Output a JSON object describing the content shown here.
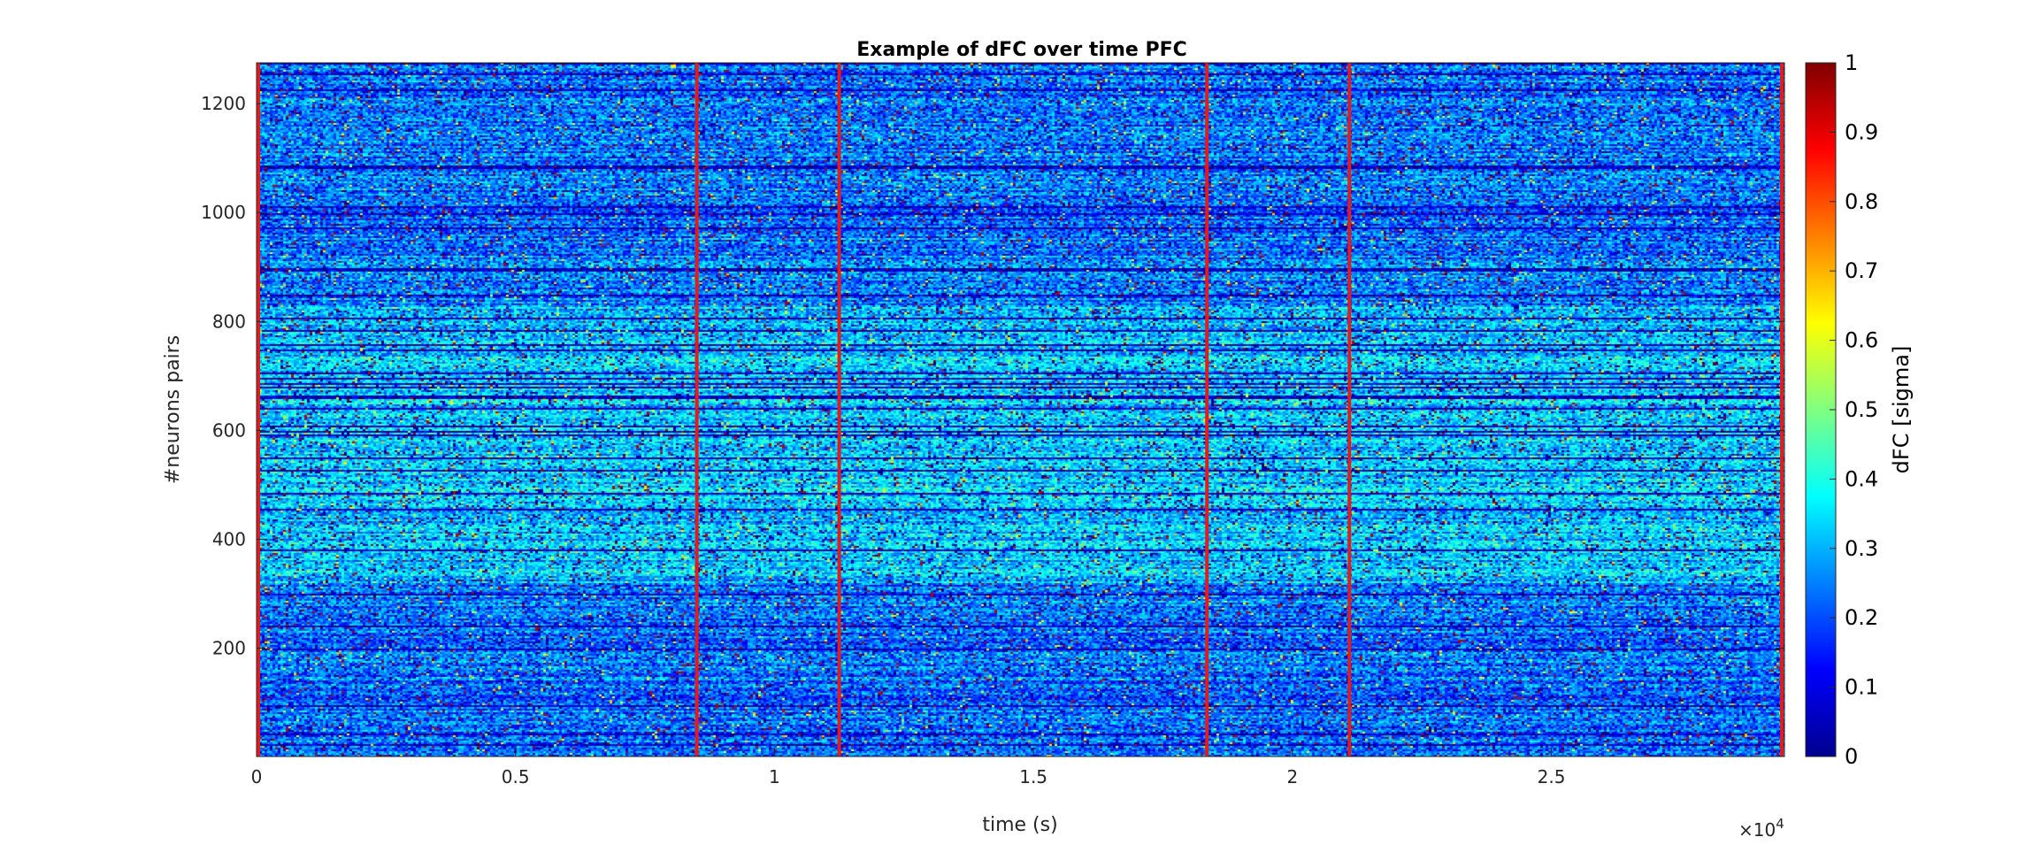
{
  "chart_data": {
    "type": "heatmap",
    "title": "Example of dFC over time PFC",
    "xlabel": "time (s)",
    "ylabel": "#neurons pairs",
    "x_exponent_label": "×10",
    "x_exponent_power": "4",
    "xlim": [
      0,
      29500
    ],
    "ylim": [
      1,
      1275
    ],
    "x_ticks": [
      0,
      5000,
      10000,
      15000,
      20000,
      25000
    ],
    "x_tick_labels": [
      "0",
      "0.5",
      "1",
      "1.5",
      "2",
      "2.5"
    ],
    "y_ticks": [
      200,
      400,
      600,
      800,
      1000,
      1200
    ],
    "y_tick_labels": [
      "200",
      "400",
      "600",
      "800",
      "1000",
      "1200"
    ],
    "vertical_markers": [
      0,
      8500,
      11250,
      18350,
      21100,
      29450
    ],
    "marker_color": "#e41a1c",
    "colorbar": {
      "label": "dFC [sigma]",
      "limits": [
        0,
        1
      ],
      "ticks": [
        0,
        0.1,
        0.2,
        0.3,
        0.4,
        0.5,
        0.6,
        0.7,
        0.8,
        0.9,
        1
      ],
      "tick_labels": [
        "0",
        "0.1",
        "0.2",
        "0.3",
        "0.4",
        "0.5",
        "0.6",
        "0.7",
        "0.8",
        "0.9",
        "1"
      ],
      "colormap": "jet"
    },
    "grid": false
  }
}
